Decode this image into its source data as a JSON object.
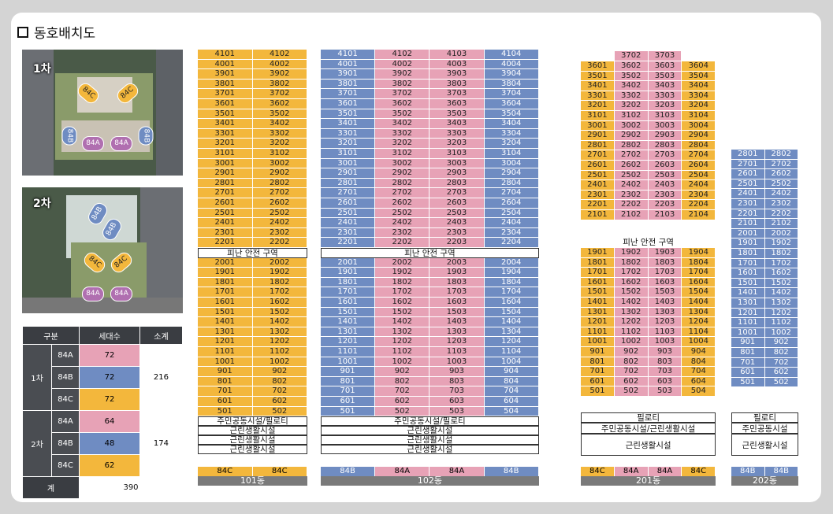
{
  "title": "동호배치도",
  "maps": [
    {
      "label": "1차",
      "chips": [
        "84C",
        "84C",
        "84B",
        "84A",
        "84A",
        "84B"
      ]
    },
    {
      "label": "2차",
      "chips": [
        "84B",
        "84B",
        "84C",
        "84C",
        "84A",
        "84A"
      ]
    }
  ],
  "summary": {
    "headers": [
      "구분",
      "세대수",
      "소계"
    ],
    "groups": [
      {
        "name": "1차",
        "rows": [
          {
            "type": "84A",
            "count": "72"
          },
          {
            "type": "84B",
            "count": "72"
          },
          {
            "type": "84C",
            "count": "72"
          }
        ],
        "subtotal": "216"
      },
      {
        "name": "2차",
        "rows": [
          {
            "type": "84A",
            "count": "64"
          },
          {
            "type": "84B",
            "count": "48"
          },
          {
            "type": "84C",
            "count": "62"
          }
        ],
        "subtotal": "174"
      }
    ],
    "total_label": "계",
    "total": "390"
  },
  "colors": {
    "84A": "#e7a2b6",
    "84B": "#6f8cc2",
    "84C": "#f3b73c"
  },
  "buildings": [
    {
      "name": "101동",
      "top_floor": 41,
      "upper_low": 22,
      "lower_top": 20,
      "low_floor": 5,
      "units": [
        "01",
        "02"
      ],
      "colors": [
        "y",
        "y"
      ],
      "refuge_label": "피난 안전 구역",
      "base": [
        "주민공동시설/필로티",
        "근린생활시설",
        "근린생활시설",
        "근린생활시설"
      ],
      "types": [
        "84C",
        "84C"
      ]
    },
    {
      "name": "102동",
      "top_floor": 41,
      "upper_low": 22,
      "lower_top": 20,
      "low_floor": 5,
      "units": [
        "01",
        "02",
        "03",
        "04"
      ],
      "colors": [
        "b",
        "p",
        "p",
        "b"
      ],
      "refuge_label": "피난 안전 구역",
      "base": [
        "주민공동시설/필로티",
        "근린생활시설",
        "근린생활시설",
        "근린생활시설"
      ],
      "types": [
        "84B",
        "84A",
        "84A",
        "84B"
      ]
    },
    {
      "name": "201동",
      "top_floor": 36,
      "upper_low": 21,
      "lower_top": 19,
      "low_floor": 5,
      "units": [
        "01",
        "02",
        "03",
        "04"
      ],
      "colors": [
        "y",
        "p",
        "p",
        "y"
      ],
      "extra_top": {
        "floor": "37",
        "units": [
          "3702",
          "3703"
        ]
      },
      "refuge_label": "피난 안전 구역",
      "base": [
        "필로티",
        "주민공동시설/근린생활시설",
        "근린생활시설"
      ],
      "types": [
        "84C",
        "84A",
        "84A",
        "84C"
      ]
    },
    {
      "name": "202동",
      "top_floor": 28,
      "low_floor": 5,
      "units": [
        "01",
        "02"
      ],
      "colors": [
        "b",
        "b"
      ],
      "base": [
        "필로티",
        "주민공동시설",
        "근린생활시설"
      ],
      "types": [
        "84B",
        "84B"
      ]
    }
  ]
}
